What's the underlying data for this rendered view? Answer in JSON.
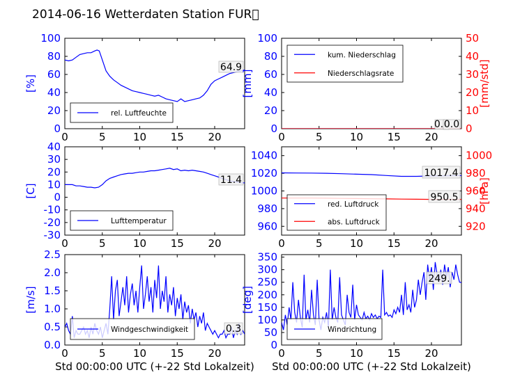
{
  "title": "2014-06-16 Wetterdaten Station FUR\u0000",
  "xlabel": "Std 00:00:00 UTC (+-22 Std Lokalzeit)",
  "colors": {
    "left_axis": "#0000ff",
    "right_axis": "#ff0000",
    "line1": "#0000ff",
    "line2": "#ff0000",
    "tick": "#000000"
  },
  "chart_data": [
    {
      "type": "line",
      "ylabel": "[%]",
      "xlim": [
        0,
        24
      ],
      "ylim": [
        0,
        100
      ],
      "xticks": [
        0,
        5,
        10,
        15,
        20
      ],
      "yticks": [
        0,
        20,
        40,
        60,
        80,
        100
      ],
      "legend": {
        "placement": "lower-left",
        "entries": [
          "rel. Luftfeuchte"
        ]
      },
      "annotations": [
        "64.9"
      ],
      "series": [
        {
          "name": "rel. Luftfeuchte",
          "axis": "left",
          "x": [
            0,
            0.5,
            1,
            1.5,
            2,
            2.5,
            3,
            3.5,
            4,
            4.3,
            4.6,
            5,
            5.5,
            6,
            6.5,
            7,
            7.5,
            8,
            8.5,
            9,
            9.5,
            10,
            10.5,
            11,
            11.5,
            12,
            12.5,
            13,
            13.5,
            14,
            14.5,
            15,
            15.5,
            16,
            16.5,
            17,
            17.5,
            18,
            18.5,
            19,
            19.5,
            20,
            20.5,
            21,
            21.5,
            22,
            22.5,
            23,
            23.5,
            24
          ],
          "y": [
            76,
            75,
            76,
            79,
            82,
            83,
            84,
            84,
            86,
            87,
            86,
            76,
            64,
            58,
            54,
            51,
            48,
            46,
            44,
            42,
            41,
            40,
            39,
            38,
            37,
            36,
            37,
            35,
            33,
            32,
            31,
            30,
            33,
            30,
            31,
            32,
            33,
            34,
            37,
            42,
            49,
            53,
            55,
            57,
            59,
            61,
            62,
            63,
            64,
            65
          ]
        }
      ]
    },
    {
      "type": "line",
      "ylabel": "[mm]",
      "ylabel_right": "[mm/std]",
      "xlim": [
        0,
        24
      ],
      "ylim": [
        0,
        100
      ],
      "ylim_right": [
        0,
        50
      ],
      "xticks": [
        0,
        5,
        10,
        15,
        20
      ],
      "yticks": [
        0,
        20,
        40,
        60,
        80,
        100
      ],
      "yticks_right": [
        0,
        10,
        20,
        30,
        40,
        50
      ],
      "legend": {
        "placement": "upper-left",
        "entries": [
          "kum. Niederschlag",
          "Niederschlagsrate"
        ]
      },
      "annotations": [
        "0.0",
        "0.0"
      ],
      "series": [
        {
          "name": "kum. Niederschlag",
          "axis": "left",
          "x": [
            0,
            24
          ],
          "y": [
            0,
            0
          ]
        },
        {
          "name": "Niederschlagsrate",
          "axis": "right",
          "x": [
            0,
            24
          ],
          "y": [
            0,
            0
          ]
        }
      ]
    },
    {
      "type": "line",
      "ylabel": "[C]",
      "xlim": [
        0,
        24
      ],
      "ylim": [
        -30,
        40
      ],
      "xticks": [
        0,
        5,
        10,
        15,
        20
      ],
      "yticks": [
        -30,
        -20,
        -10,
        0,
        10,
        20,
        30,
        40
      ],
      "legend": {
        "placement": "lower-left",
        "entries": [
          "Lufttemperatur"
        ]
      },
      "annotations": [
        "11.4"
      ],
      "series": [
        {
          "name": "Lufttemperatur",
          "axis": "left",
          "x": [
            0,
            0.5,
            1,
            1.5,
            2,
            2.5,
            3,
            3.5,
            4,
            4.5,
            5,
            5.5,
            6,
            6.5,
            7,
            7.5,
            8,
            8.5,
            9,
            9.5,
            10,
            10.5,
            11,
            11.5,
            12,
            12.5,
            13,
            13.5,
            14,
            14.5,
            15,
            15.5,
            16,
            16.5,
            17,
            17.5,
            18,
            18.5,
            19,
            19.5,
            20,
            20.5,
            21,
            21.5,
            22,
            22.5,
            23,
            23.5,
            24
          ],
          "y": [
            10,
            10,
            10,
            9,
            9,
            8.5,
            8,
            8,
            7.5,
            8,
            10,
            13,
            15,
            16,
            17,
            18,
            18.5,
            19,
            19,
            19.5,
            20,
            20,
            20.5,
            21,
            21,
            21.5,
            22,
            22.5,
            23,
            22,
            22.5,
            21,
            21.5,
            21,
            21.5,
            21,
            20.5,
            20,
            19,
            18,
            17,
            16,
            15,
            14,
            13,
            12.5,
            12,
            11.5,
            11.4
          ]
        }
      ]
    },
    {
      "type": "line",
      "ylabel_right": "[hPa]",
      "xlim": [
        0,
        24
      ],
      "ylim": [
        950,
        1050
      ],
      "ylim_right": [
        910,
        1010
      ],
      "xticks": [
        0,
        5,
        10,
        15,
        20
      ],
      "yticks": [
        960,
        980,
        1000,
        1020,
        1040
      ],
      "yticks_right": [
        920,
        940,
        960,
        980,
        1000
      ],
      "legend": {
        "placement": "lower-left",
        "entries": [
          "red. Luftdruck",
          "abs. Luftdruck"
        ]
      },
      "annotations": [
        "1017.4",
        "950.5"
      ],
      "series": [
        {
          "name": "red. Luftdruck",
          "axis": "left",
          "x": [
            0,
            2,
            4,
            6,
            8,
            10,
            12,
            14,
            16,
            18,
            20,
            22,
            24
          ],
          "y": [
            1020.5,
            1020.3,
            1020.2,
            1020,
            1019.5,
            1019,
            1018.5,
            1017.5,
            1016.5,
            1016.5,
            1017,
            1017.2,
            1017.4
          ]
        },
        {
          "name": "abs. Luftdruck",
          "axis": "right",
          "x": [
            0,
            2,
            4,
            6,
            8,
            10,
            12,
            14,
            16,
            18,
            20,
            22,
            24
          ],
          "y": [
            952,
            952,
            952,
            951.8,
            951.6,
            951.4,
            951.2,
            951,
            950.8,
            950.6,
            950.5,
            950.5,
            950.5
          ]
        }
      ]
    },
    {
      "type": "line",
      "ylabel": "[m/s]",
      "xlim": [
        0,
        24
      ],
      "ylim": [
        0,
        2.5
      ],
      "xticks": [
        0,
        5,
        10,
        15,
        20
      ],
      "yticks": [
        0.0,
        0.5,
        1.0,
        1.5,
        2.0,
        2.5
      ],
      "ytick_labels": [
        "0.0",
        "0.5",
        "1.0",
        "1.5",
        "2.0",
        "2.5"
      ],
      "legend": {
        "placement": "lower-left",
        "entries": [
          "Windgeschwindigkeit"
        ]
      },
      "annotations": [
        "0.3"
      ],
      "series": [
        {
          "name": "Windgeschwindigkeit",
          "axis": "left",
          "x": [
            0,
            0.25,
            0.5,
            0.75,
            1,
            1.25,
            1.5,
            1.75,
            2,
            2.25,
            2.5,
            2.75,
            3,
            3.25,
            3.5,
            3.75,
            4,
            4.25,
            4.5,
            4.75,
            5,
            5.25,
            5.5,
            5.75,
            6,
            6.25,
            6.5,
            6.75,
            7,
            7.25,
            7.5,
            7.75,
            8,
            8.25,
            8.5,
            8.75,
            9,
            9.25,
            9.5,
            9.75,
            10,
            10.25,
            10.5,
            10.75,
            11,
            11.25,
            11.5,
            11.75,
            12,
            12.25,
            12.5,
            12.75,
            13,
            13.25,
            13.5,
            13.75,
            14,
            14.25,
            14.5,
            14.75,
            15,
            15.25,
            15.5,
            15.75,
            16,
            16.25,
            16.5,
            16.75,
            17,
            17.25,
            17.5,
            17.75,
            18,
            18.25,
            18.5,
            18.75,
            19,
            19.25,
            19.5,
            19.75,
            20,
            20.25,
            20.5,
            20.75,
            21,
            21.25,
            21.5,
            21.75,
            22,
            22.25,
            22.5,
            22.75,
            23,
            23.25,
            23.5,
            23.75,
            24
          ],
          "y": [
            0.5,
            0.6,
            0.4,
            0.3,
            0.8,
            0.2,
            0.4,
            0.3,
            0.3,
            0.4,
            0.5,
            0.3,
            0.4,
            0.2,
            0.5,
            0.3,
            0.6,
            0.4,
            0.3,
            0.5,
            0.2,
            0.4,
            0.6,
            0.3,
            1.0,
            1.9,
            0.7,
            1.5,
            1.8,
            0.8,
            1.2,
            1.6,
            1.1,
            1.9,
            0.9,
            1.4,
            1.7,
            1.1,
            1.5,
            0.9,
            1.6,
            2.2,
            1.0,
            1.4,
            1.9,
            1.2,
            1.6,
            0.9,
            1.8,
            1.3,
            2.2,
            1.0,
            1.5,
            1.2,
            1.9,
            0.9,
            1.4,
            1.1,
            1.6,
            0.8,
            1.3,
            1.0,
            1.4,
            0.7,
            1.2,
            0.9,
            1.1,
            0.6,
            1.0,
            0.7,
            0.9,
            0.5,
            0.8,
            0.6,
            0.9,
            0.4,
            0.6,
            0.5,
            0.4,
            0.3,
            0.4,
            0.3,
            0.2,
            0.3,
            0.3,
            0.4,
            0.2,
            0.3,
            0.3,
            0.5,
            0.2,
            0.4,
            0.3,
            0.6,
            0.3,
            0.4,
            0.3
          ]
        }
      ]
    },
    {
      "type": "line",
      "ylabel": "[deg]",
      "xlim": [
        0,
        24
      ],
      "ylim": [
        0,
        360
      ],
      "xticks": [
        0,
        5,
        10,
        15,
        20
      ],
      "yticks": [
        0,
        50,
        100,
        150,
        200,
        250,
        300,
        350
      ],
      "legend": {
        "placement": "lower-left",
        "entries": [
          "Windrichtung"
        ]
      },
      "annotations": [
        "249."
      ],
      "series": [
        {
          "name": "Windrichtung",
          "axis": "left",
          "x": [
            0,
            0.25,
            0.5,
            0.75,
            1,
            1.25,
            1.5,
            1.75,
            2,
            2.25,
            2.5,
            2.75,
            3,
            3.25,
            3.5,
            3.75,
            4,
            4.25,
            4.5,
            4.75,
            5,
            5.25,
            5.5,
            5.75,
            6,
            6.25,
            6.5,
            6.75,
            7,
            7.25,
            7.5,
            7.75,
            8,
            8.25,
            8.5,
            8.75,
            9,
            9.25,
            9.5,
            9.75,
            10,
            10.25,
            10.5,
            10.75,
            11,
            11.25,
            11.5,
            11.75,
            12,
            12.25,
            12.5,
            12.75,
            13,
            13.25,
            13.5,
            13.75,
            14,
            14.25,
            14.5,
            14.75,
            15,
            15.25,
            15.5,
            15.75,
            16,
            16.25,
            16.5,
            16.75,
            17,
            17.25,
            17.5,
            17.75,
            18,
            18.25,
            18.5,
            18.75,
            19,
            19.25,
            19.5,
            19.75,
            20,
            20.25,
            20.5,
            20.75,
            21,
            21.25,
            21.5,
            21.75,
            22,
            22.25,
            22.5,
            22.75,
            23,
            23.25,
            23.5,
            23.75,
            24
          ],
          "y": [
            90,
            60,
            120,
            80,
            150,
            100,
            250,
            130,
            90,
            180,
            110,
            70,
            280,
            100,
            140,
            90,
            220,
            120,
            80,
            260,
            100,
            60,
            110,
            90,
            130,
            70,
            300,
            100,
            150,
            110,
            90,
            270,
            120,
            100,
            80,
            200,
            130,
            110,
            240,
            100,
            160,
            120,
            110,
            100,
            130,
            105,
            115,
            100,
            125,
            110,
            120,
            105,
            115,
            110,
            300,
            120,
            130,
            115,
            120,
            110,
            140,
            125,
            150,
            130,
            200,
            120,
            250,
            140,
            160,
            130,
            220,
            150,
            180,
            260,
            200,
            250,
            290,
            180,
            320,
            260,
            310,
            220,
            330,
            280,
            250,
            300,
            240,
            320,
            270,
            310,
            230,
            290,
            260,
            320,
            280,
            250,
            249
          ]
        }
      ]
    }
  ]
}
